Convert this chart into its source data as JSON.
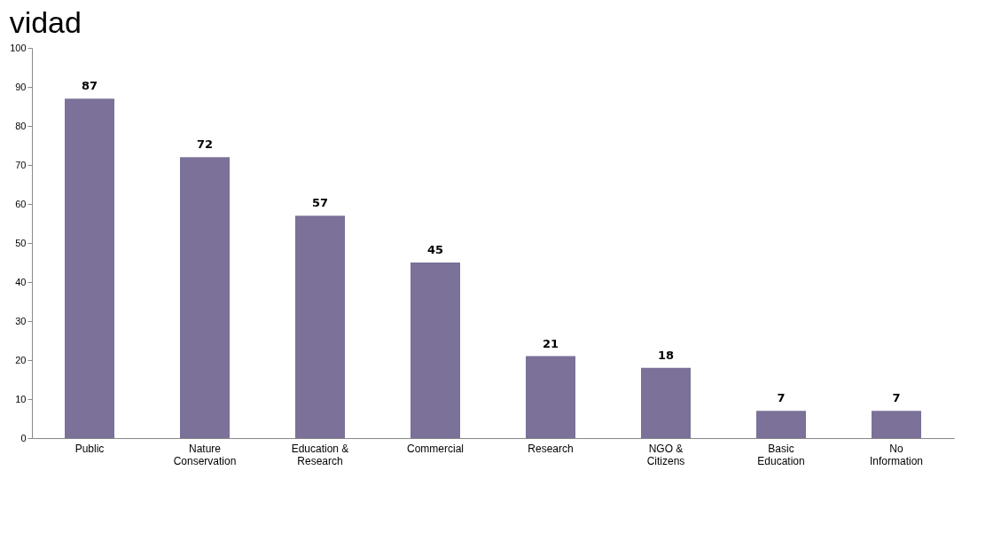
{
  "chart_data": {
    "type": "bar",
    "categories": [
      "Public",
      "Nature Conservation",
      "Education & Research",
      "Commercial",
      "Research",
      "NGO & Citizens",
      "Basic Education",
      "No Information"
    ],
    "values": [
      87,
      72,
      57,
      45,
      21,
      18,
      7,
      7
    ],
    "color": "#7b7199",
    "ylim": [
      0,
      100
    ],
    "yticks": [
      0,
      10,
      20,
      30,
      40,
      50,
      60,
      70,
      80,
      90,
      100
    ],
    "data_labels": true,
    "grid": false,
    "annotations": [
      "vidad"
    ]
  }
}
